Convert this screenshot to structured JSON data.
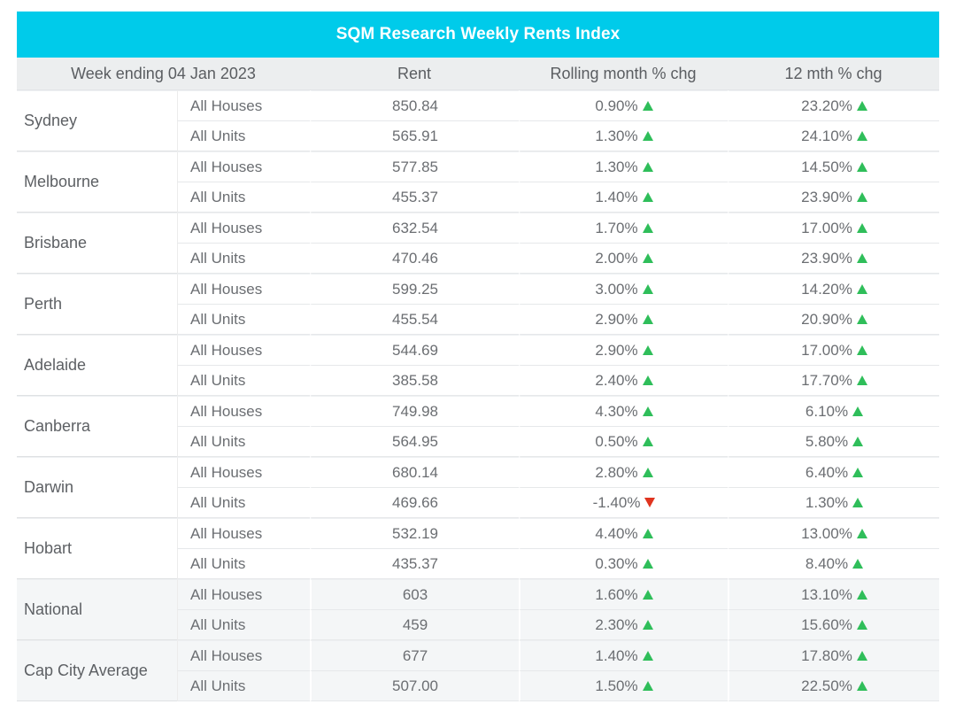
{
  "title": "SQM Research Weekly Rents Index",
  "headers": [
    "Week ending 04 Jan 2023",
    "Rent",
    "Rolling month % chg",
    "12 mth % chg"
  ],
  "colors": {
    "header_bg": "#00cbea",
    "up": "#2fbe5a",
    "down": "#e0341f"
  },
  "rows": [
    {
      "city": "Sydney",
      "shaded": false,
      "items": [
        {
          "type": "All Houses",
          "rent": "850.84",
          "roll": "0.90%",
          "roll_dir": "up",
          "yr": "23.20%",
          "yr_dir": "up"
        },
        {
          "type": "All Units",
          "rent": "565.91",
          "roll": "1.30%",
          "roll_dir": "up",
          "yr": "24.10%",
          "yr_dir": "up"
        }
      ]
    },
    {
      "city": "Melbourne",
      "shaded": false,
      "items": [
        {
          "type": "All Houses",
          "rent": "577.85",
          "roll": "1.30%",
          "roll_dir": "up",
          "yr": "14.50%",
          "yr_dir": "up"
        },
        {
          "type": "All Units",
          "rent": "455.37",
          "roll": "1.40%",
          "roll_dir": "up",
          "yr": "23.90%",
          "yr_dir": "up"
        }
      ]
    },
    {
      "city": "Brisbane",
      "shaded": false,
      "items": [
        {
          "type": "All Houses",
          "rent": "632.54",
          "roll": "1.70%",
          "roll_dir": "up",
          "yr": "17.00%",
          "yr_dir": "up"
        },
        {
          "type": "All Units",
          "rent": "470.46",
          "roll": "2.00%",
          "roll_dir": "up",
          "yr": "23.90%",
          "yr_dir": "up"
        }
      ]
    },
    {
      "city": "Perth",
      "shaded": false,
      "items": [
        {
          "type": "All Houses",
          "rent": "599.25",
          "roll": "3.00%",
          "roll_dir": "up",
          "yr": "14.20%",
          "yr_dir": "up"
        },
        {
          "type": "All Units",
          "rent": "455.54",
          "roll": "2.90%",
          "roll_dir": "up",
          "yr": "20.90%",
          "yr_dir": "up"
        }
      ]
    },
    {
      "city": "Adelaide",
      "shaded": false,
      "items": [
        {
          "type": "All Houses",
          "rent": "544.69",
          "roll": "2.90%",
          "roll_dir": "up",
          "yr": "17.00%",
          "yr_dir": "up"
        },
        {
          "type": "All Units",
          "rent": "385.58",
          "roll": "2.40%",
          "roll_dir": "up",
          "yr": "17.70%",
          "yr_dir": "up"
        }
      ]
    },
    {
      "city": "Canberra",
      "shaded": false,
      "items": [
        {
          "type": "All Houses",
          "rent": "749.98",
          "roll": "4.30%",
          "roll_dir": "up",
          "yr": "6.10%",
          "yr_dir": "up"
        },
        {
          "type": "All Units",
          "rent": "564.95",
          "roll": "0.50%",
          "roll_dir": "up",
          "yr": "5.80%",
          "yr_dir": "up"
        }
      ]
    },
    {
      "city": "Darwin",
      "shaded": false,
      "items": [
        {
          "type": "All Houses",
          "rent": "680.14",
          "roll": "2.80%",
          "roll_dir": "up",
          "yr": "6.40%",
          "yr_dir": "up"
        },
        {
          "type": "All Units",
          "rent": "469.66",
          "roll": "-1.40%",
          "roll_dir": "down",
          "yr": "1.30%",
          "yr_dir": "up"
        }
      ]
    },
    {
      "city": "Hobart",
      "shaded": false,
      "items": [
        {
          "type": "All Houses",
          "rent": "532.19",
          "roll": "4.40%",
          "roll_dir": "up",
          "yr": "13.00%",
          "yr_dir": "up"
        },
        {
          "type": "All Units",
          "rent": "435.37",
          "roll": "0.30%",
          "roll_dir": "up",
          "yr": "8.40%",
          "yr_dir": "up"
        }
      ]
    },
    {
      "city": "National",
      "shaded": true,
      "items": [
        {
          "type": "All Houses",
          "rent": "603",
          "roll": "1.60%",
          "roll_dir": "up",
          "yr": "13.10%",
          "yr_dir": "up"
        },
        {
          "type": "All Units",
          "rent": "459",
          "roll": "2.30%",
          "roll_dir": "up",
          "yr": "15.60%",
          "yr_dir": "up"
        }
      ]
    },
    {
      "city": "Cap City Average",
      "shaded": true,
      "items": [
        {
          "type": "All Houses",
          "rent": "677",
          "roll": "1.40%",
          "roll_dir": "up",
          "yr": "17.80%",
          "yr_dir": "up"
        },
        {
          "type": "All Units",
          "rent": "507.00",
          "roll": "1.50%",
          "roll_dir": "up",
          "yr": "22.50%",
          "yr_dir": "up"
        }
      ]
    }
  ]
}
